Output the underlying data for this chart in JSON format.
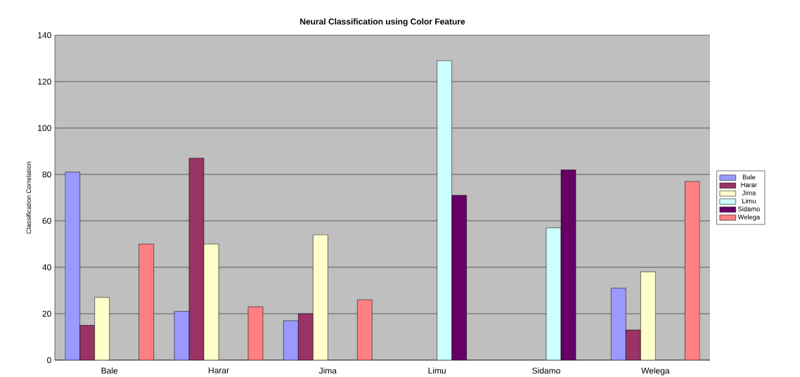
{
  "chart_data": {
    "type": "bar",
    "title": "Neural Classification using Color  Feature",
    "ylabel": "Classification Correlation",
    "categories": [
      "Bale",
      "Harar",
      "Jima",
      "Limu",
      "Sidamo",
      "Welega"
    ],
    "series": [
      {
        "name": "Bale",
        "color": "#9999ff",
        "values": [
          81,
          21,
          17,
          null,
          null,
          31
        ]
      },
      {
        "name": "Harar",
        "color": "#993366",
        "values": [
          15,
          87,
          20,
          null,
          null,
          13
        ]
      },
      {
        "name": "Jima",
        "color": "#ffffcc",
        "values": [
          27,
          50,
          54,
          null,
          null,
          38
        ]
      },
      {
        "name": "Limu",
        "color": "#ccffff",
        "values": [
          null,
          null,
          null,
          129,
          57,
          null
        ]
      },
      {
        "name": "Sidamo",
        "color": "#660066",
        "values": [
          null,
          null,
          null,
          71,
          82,
          null
        ]
      },
      {
        "name": "Welega",
        "color": "#ff8080",
        "values": [
          50,
          23,
          26,
          null,
          null,
          77
        ]
      }
    ],
    "ylim": [
      0,
      140
    ],
    "yticks": [
      0,
      20,
      40,
      60,
      80,
      100,
      120,
      140
    ],
    "grid": "y",
    "legend": "right"
  }
}
